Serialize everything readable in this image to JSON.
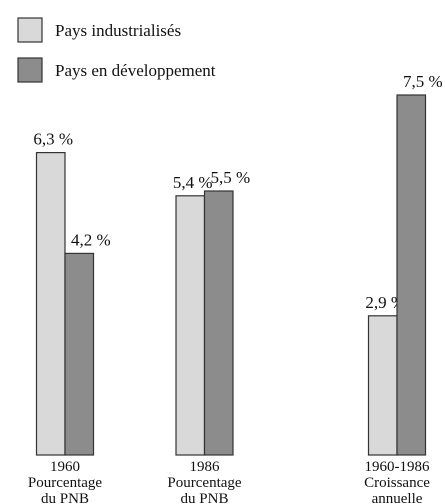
{
  "chart_data": {
    "type": "bar",
    "categories": [
      [
        "1960",
        "Pourcentage",
        "du PNB"
      ],
      [
        "1986",
        "Pourcentage",
        "du PNB"
      ],
      [
        "1960-1986",
        "Croissance",
        "annuelle"
      ]
    ],
    "series": [
      {
        "name": "Pays industrialisés",
        "color": "#d9d9d9",
        "values": [
          6.3,
          5.4,
          2.9
        ],
        "value_labels": [
          "6,3 %",
          "5,4 %",
          "2,9 %"
        ]
      },
      {
        "name": "Pays en développement",
        "color": "#8c8c8c",
        "values": [
          4.2,
          5.5,
          7.5
        ],
        "value_labels": [
          "4,2 %",
          "5,5 %",
          "7,5 %"
        ]
      }
    ]
  }
}
